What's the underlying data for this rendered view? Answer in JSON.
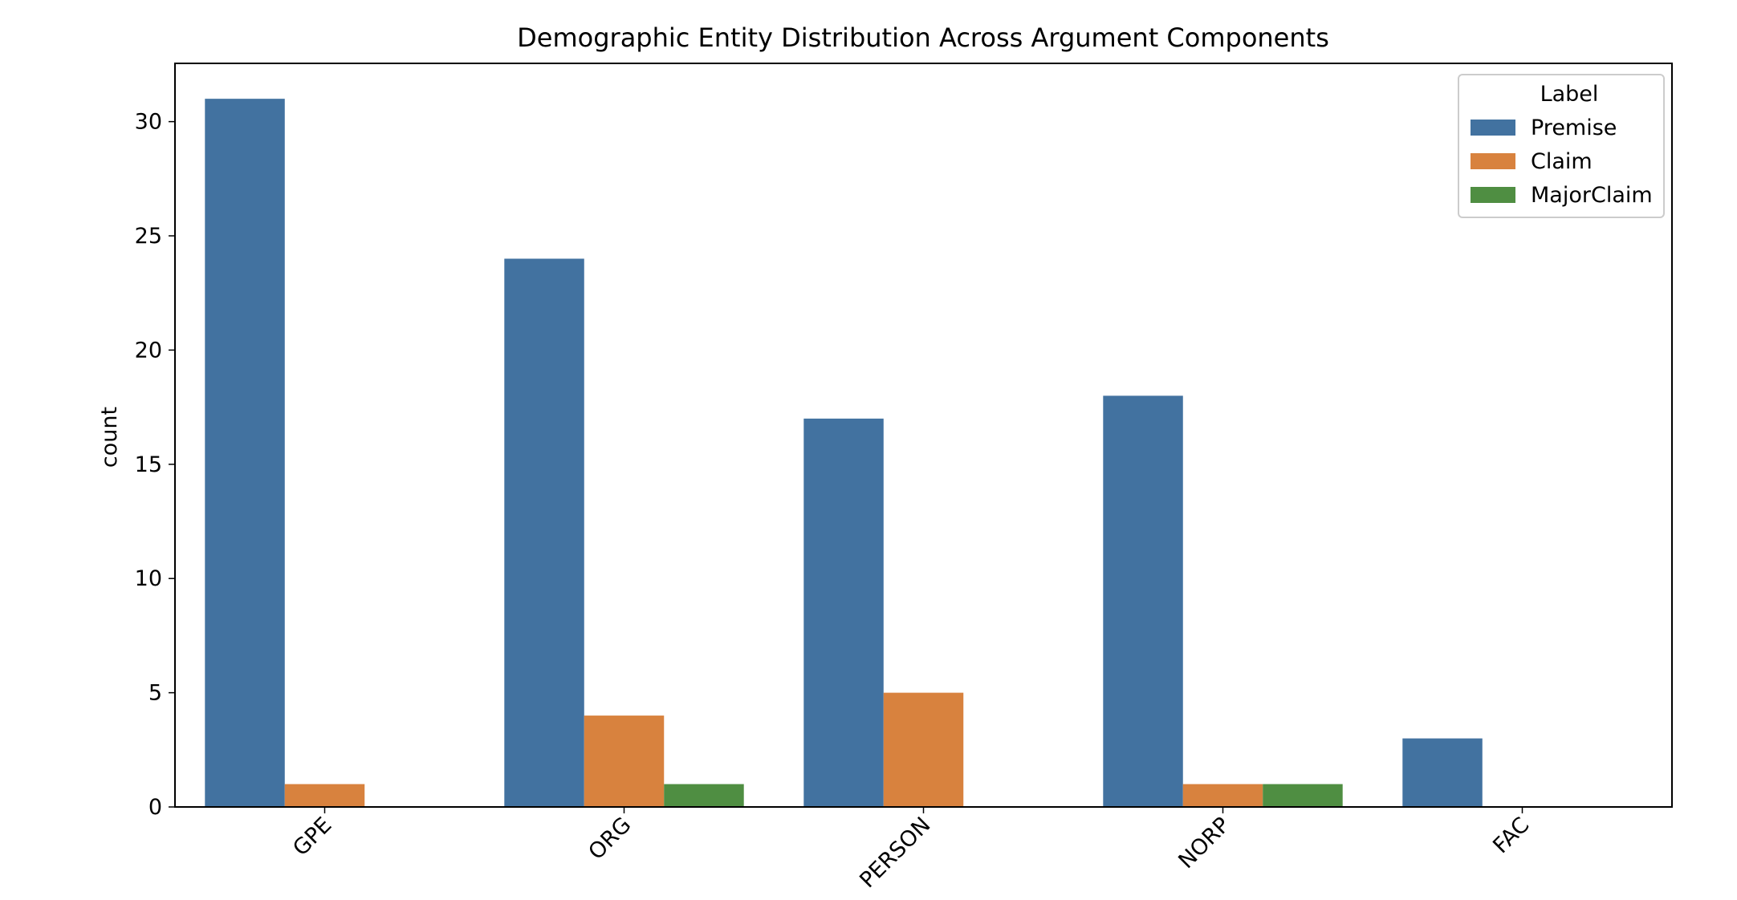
{
  "chart_data": {
    "type": "bar",
    "title": "Demographic Entity Distribution Across Argument Components",
    "xlabel": "",
    "ylabel": "count",
    "categories": [
      "GPE",
      "ORG",
      "PERSON",
      "NORP",
      "FAC"
    ],
    "series": [
      {
        "name": "Premise",
        "color": "#4272a0",
        "values": [
          31,
          24,
          17,
          18,
          3
        ]
      },
      {
        "name": "Claim",
        "color": "#d8823e",
        "values": [
          1,
          4,
          5,
          1,
          0
        ]
      },
      {
        "name": "MajorClaim",
        "color": "#4f8e42",
        "values": [
          0,
          1,
          0,
          1,
          0
        ]
      }
    ],
    "ylim": [
      0,
      32.55
    ],
    "yticks": [
      0,
      5,
      10,
      15,
      20,
      25,
      30
    ],
    "grid": false,
    "legend": {
      "title": "Label",
      "placement": "top-right"
    }
  }
}
